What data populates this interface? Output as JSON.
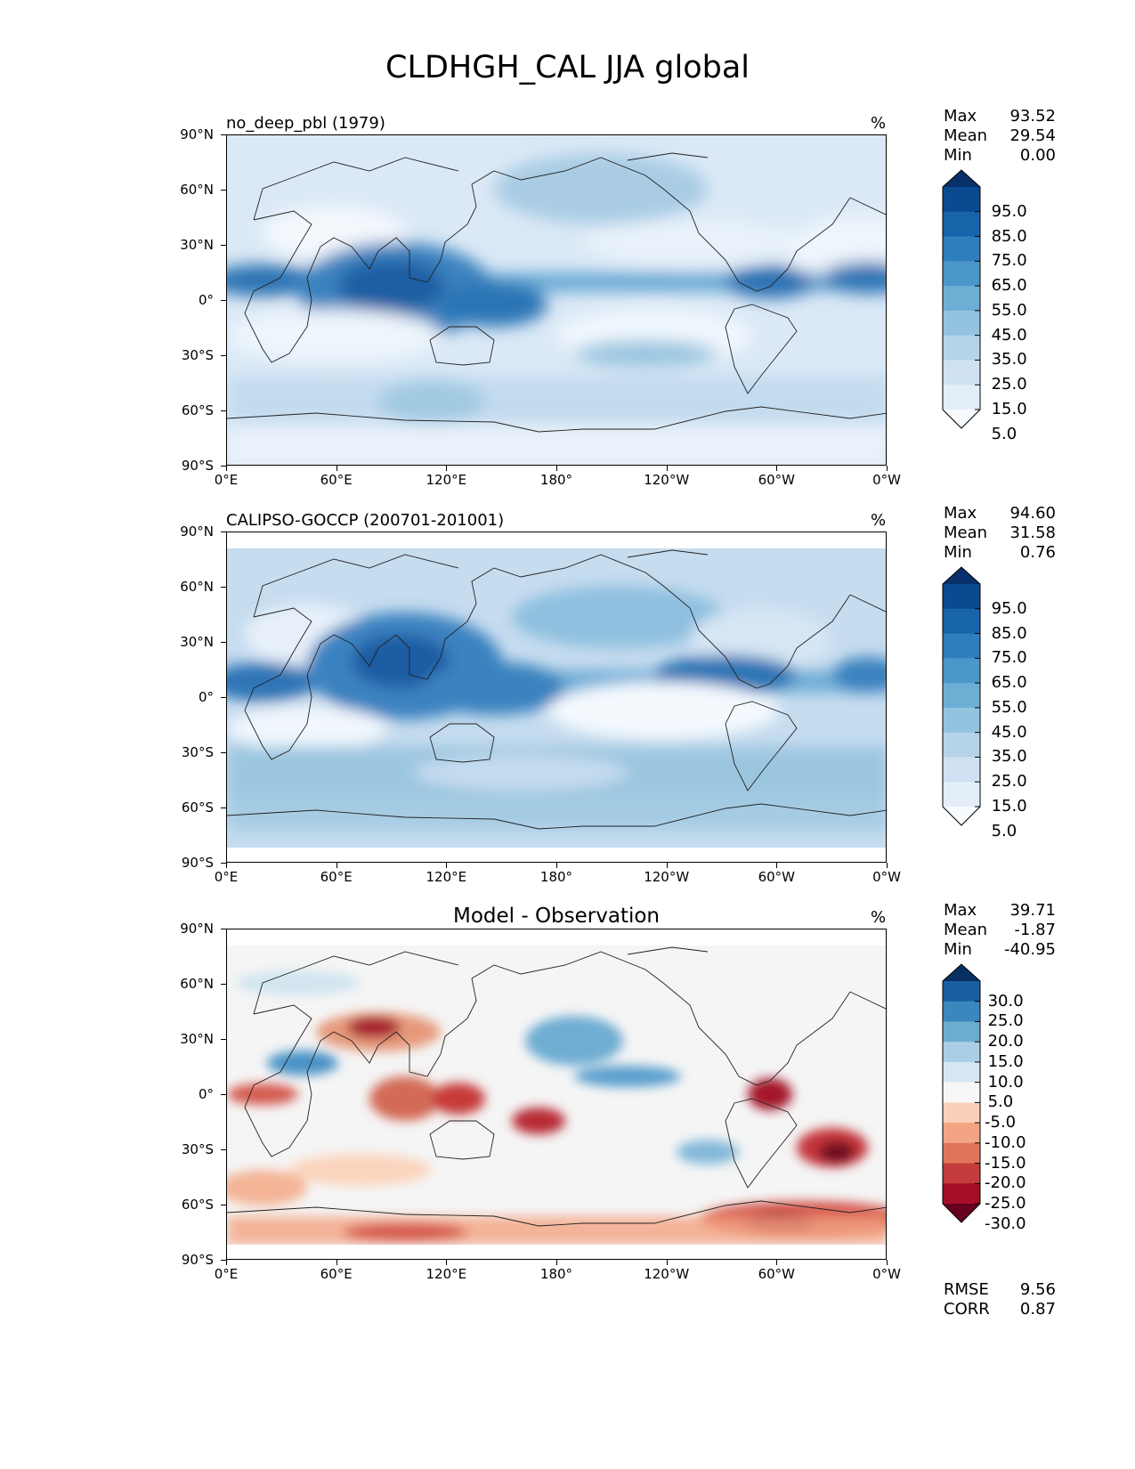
{
  "figure": {
    "title": "CLDHGH_CAL JJA global"
  },
  "axes": {
    "y_ticks": [
      "90°N",
      "60°N",
      "30°N",
      "0°",
      "30°S",
      "60°S",
      "90°S"
    ],
    "x_ticks": [
      "0°E",
      "60°E",
      "120°E",
      "180°",
      "120°W",
      "60°W",
      "0°W"
    ]
  },
  "panels": [
    {
      "title": "no_deep_pbl (1979)",
      "units": "%",
      "stats": [
        {
          "label": "Max",
          "value": "93.52"
        },
        {
          "label": "Mean",
          "value": "29.54"
        },
        {
          "label": "Min",
          "value": "0.00"
        }
      ],
      "colorbar": {
        "labels": [
          "95.0",
          "85.0",
          "75.0",
          "65.0",
          "55.0",
          "45.0",
          "35.0",
          "25.0",
          "15.0",
          "5.0"
        ],
        "colors": [
          "#f7fbff",
          "#e3eef9",
          "#cfe1f2",
          "#b5d4e9",
          "#93c3df",
          "#6daed5",
          "#4b97c9",
          "#2f7ebc",
          "#1864aa",
          "#0a4a90",
          "#08306b"
        ]
      }
    },
    {
      "title": "CALIPSO-GOCCP (200701-201001)",
      "units": "%",
      "stats": [
        {
          "label": "Max",
          "value": "94.60"
        },
        {
          "label": "Mean",
          "value": "31.58"
        },
        {
          "label": "Min",
          "value": "0.76"
        }
      ],
      "colorbar": {
        "labels": [
          "95.0",
          "85.0",
          "75.0",
          "65.0",
          "55.0",
          "45.0",
          "35.0",
          "25.0",
          "15.0",
          "5.0"
        ],
        "colors": [
          "#f7fbff",
          "#e3eef9",
          "#cfe1f2",
          "#b5d4e9",
          "#93c3df",
          "#6daed5",
          "#4b97c9",
          "#2f7ebc",
          "#1864aa",
          "#0a4a90",
          "#08306b"
        ]
      }
    },
    {
      "title": "Model - Observation",
      "units": "%",
      "stats": [
        {
          "label": "Max",
          "value": "39.71"
        },
        {
          "label": "Mean",
          "value": "-1.87"
        },
        {
          "label": "Min",
          "value": "-40.95"
        }
      ],
      "metrics": [
        {
          "label": "RMSE",
          "value": "9.56"
        },
        {
          "label": "CORR",
          "value": "0.87"
        }
      ],
      "colorbar": {
        "labels": [
          "30.0",
          "25.0",
          "20.0",
          "15.0",
          "10.0",
          "5.0",
          "-5.0",
          "-10.0",
          "-15.0",
          "-20.0",
          "-25.0",
          "-30.0"
        ],
        "colors": [
          "#67001f",
          "#a50f26",
          "#c43c3c",
          "#e0745a",
          "#f2a483",
          "#fbd0b9",
          "#f7f7f7",
          "#d6e7f1",
          "#aacfe5",
          "#6dacd1",
          "#3a87bd",
          "#1a5ea2",
          "#053061"
        ]
      }
    }
  ]
}
